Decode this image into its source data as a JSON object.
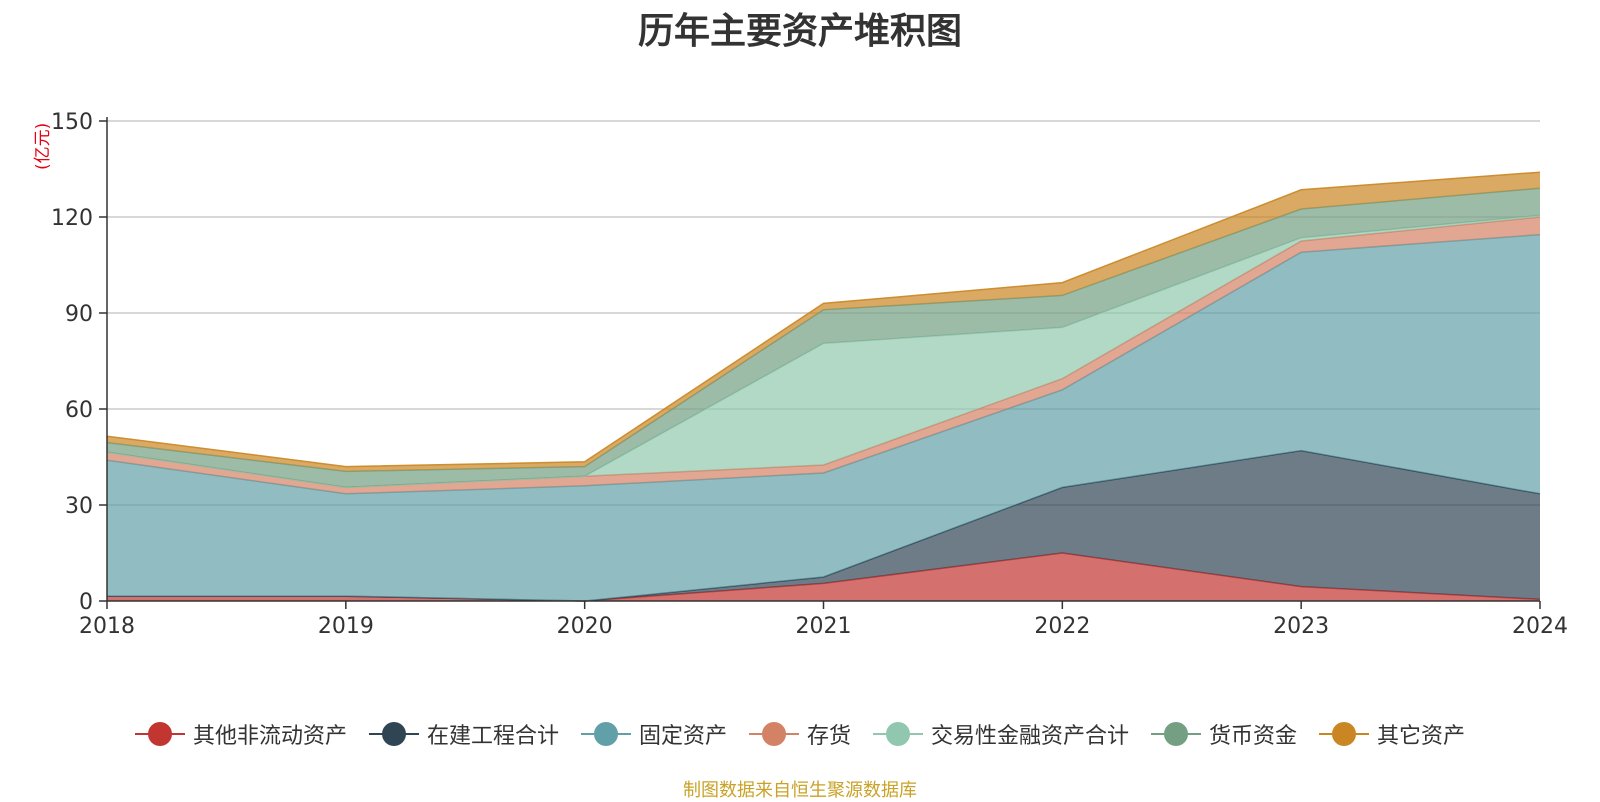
{
  "chart_data": {
    "type": "area",
    "stacked": true,
    "title": "历年主要资产堆积图",
    "unit": "(亿元)",
    "x": [
      "2018",
      "2019",
      "2020",
      "2021",
      "2022",
      "2023",
      "2024"
    ],
    "ylim": [
      0,
      150
    ],
    "yticks": [
      0,
      30,
      60,
      90,
      120,
      150
    ],
    "grid": true,
    "legend_position": "bottom",
    "source_note": "制图数据来自恒生聚源数据库",
    "series": [
      {
        "name": "其他非流动资产",
        "color": "#c23531",
        "values": [
          1.5,
          1.5,
          0.0,
          5.5,
          15.0,
          4.5,
          0.5
        ]
      },
      {
        "name": "在建工程合计",
        "color": "#2f4554",
        "values": [
          0.0,
          0.0,
          0.0,
          2.0,
          20.5,
          42.5,
          33.0
        ]
      },
      {
        "name": "固定资产",
        "color": "#61a0a8",
        "values": [
          42.5,
          32.0,
          36.0,
          32.5,
          30.5,
          62.0,
          81.0
        ]
      },
      {
        "name": "存货",
        "color": "#d48265",
        "values": [
          2.5,
          2.0,
          3.0,
          2.5,
          3.5,
          3.5,
          5.5
        ]
      },
      {
        "name": "交易性金融资产合计",
        "color": "#91c7ae",
        "values": [
          0.0,
          0.0,
          0.0,
          38.0,
          16.0,
          1.0,
          0.5
        ]
      },
      {
        "name": "货币资金",
        "color": "#749f83",
        "values": [
          3.0,
          5.0,
          3.0,
          10.5,
          10.0,
          9.0,
          8.5
        ]
      },
      {
        "name": "其它资产",
        "color": "#ca8622",
        "values": [
          2.0,
          1.5,
          1.5,
          2.0,
          4.0,
          6.0,
          5.0
        ]
      }
    ]
  }
}
